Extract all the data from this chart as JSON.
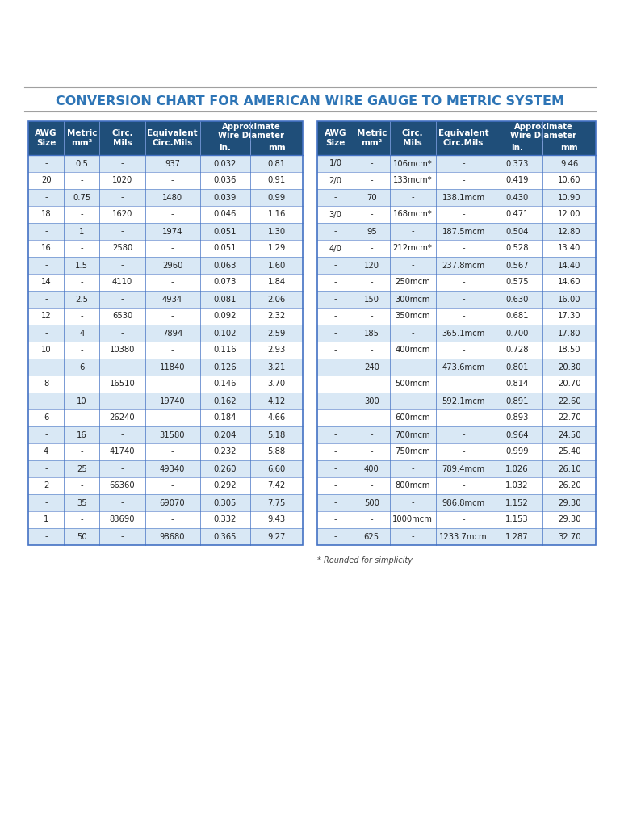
{
  "title": "CONVERSION CHART FOR AMERICAN WIRE GAUGE TO METRIC SYSTEM",
  "title_color": "#2E75B6",
  "header_bg": "#1F4E79",
  "header_text_color": "#FFFFFF",
  "odd_row_bg": "#D9E8F5",
  "even_row_bg": "#FFFFFF",
  "border_color": "#4472C4",
  "left_data": [
    [
      "-",
      "0.5",
      "-",
      "937",
      "0.032",
      "0.81"
    ],
    [
      "20",
      "-",
      "1020",
      "-",
      "0.036",
      "0.91"
    ],
    [
      "-",
      "0.75",
      "-",
      "1480",
      "0.039",
      "0.99"
    ],
    [
      "18",
      "-",
      "1620",
      "-",
      "0.046",
      "1.16"
    ],
    [
      "-",
      "1",
      "-",
      "1974",
      "0.051",
      "1.30"
    ],
    [
      "16",
      "-",
      "2580",
      "-",
      "0.051",
      "1.29"
    ],
    [
      "-",
      "1.5",
      "-",
      "2960",
      "0.063",
      "1.60"
    ],
    [
      "14",
      "-",
      "4110",
      "-",
      "0.073",
      "1.84"
    ],
    [
      "-",
      "2.5",
      "-",
      "4934",
      "0.081",
      "2.06"
    ],
    [
      "12",
      "-",
      "6530",
      "-",
      "0.092",
      "2.32"
    ],
    [
      "-",
      "4",
      "-",
      "7894",
      "0.102",
      "2.59"
    ],
    [
      "10",
      "-",
      "10380",
      "-",
      "0.116",
      "2.93"
    ],
    [
      "-",
      "6",
      "-",
      "11840",
      "0.126",
      "3.21"
    ],
    [
      "8",
      "-",
      "16510",
      "-",
      "0.146",
      "3.70"
    ],
    [
      "-",
      "10",
      "-",
      "19740",
      "0.162",
      "4.12"
    ],
    [
      "6",
      "-",
      "26240",
      "-",
      "0.184",
      "4.66"
    ],
    [
      "-",
      "16",
      "-",
      "31580",
      "0.204",
      "5.18"
    ],
    [
      "4",
      "-",
      "41740",
      "-",
      "0.232",
      "5.88"
    ],
    [
      "-",
      "25",
      "-",
      "49340",
      "0.260",
      "6.60"
    ],
    [
      "2",
      "-",
      "66360",
      "-",
      "0.292",
      "7.42"
    ],
    [
      "-",
      "35",
      "-",
      "69070",
      "0.305",
      "7.75"
    ],
    [
      "1",
      "-",
      "83690",
      "-",
      "0.332",
      "9.43"
    ],
    [
      "-",
      "50",
      "-",
      "98680",
      "0.365",
      "9.27"
    ]
  ],
  "right_data": [
    [
      "1/0",
      "-",
      "106mcm*",
      "-",
      "0.373",
      "9.46"
    ],
    [
      "2/0",
      "-",
      "133mcm*",
      "-",
      "0.419",
      "10.60"
    ],
    [
      "-",
      "70",
      "-",
      "138.1mcm",
      "0.430",
      "10.90"
    ],
    [
      "3/0",
      "-",
      "168mcm*",
      "-",
      "0.471",
      "12.00"
    ],
    [
      "-",
      "95",
      "-",
      "187.5mcm",
      "0.504",
      "12.80"
    ],
    [
      "4/0",
      "-",
      "212mcm*",
      "-",
      "0.528",
      "13.40"
    ],
    [
      "-",
      "120",
      "-",
      "237.8mcm",
      "0.567",
      "14.40"
    ],
    [
      "-",
      "-",
      "250mcm",
      "-",
      "0.575",
      "14.60"
    ],
    [
      "-",
      "150",
      "300mcm",
      "-",
      "0.630",
      "16.00"
    ],
    [
      "-",
      "-",
      "350mcm",
      "-",
      "0.681",
      "17.30"
    ],
    [
      "-",
      "185",
      "-",
      "365.1mcm",
      "0.700",
      "17.80"
    ],
    [
      "-",
      "-",
      "400mcm",
      "-",
      "0.728",
      "18.50"
    ],
    [
      "-",
      "240",
      "-",
      "473.6mcm",
      "0.801",
      "20.30"
    ],
    [
      "-",
      "-",
      "500mcm",
      "-",
      "0.814",
      "20.70"
    ],
    [
      "-",
      "300",
      "-",
      "592.1mcm",
      "0.891",
      "22.60"
    ],
    [
      "-",
      "-",
      "600mcm",
      "-",
      "0.893",
      "22.70"
    ],
    [
      "-",
      "-",
      "700mcm",
      "-",
      "0.964",
      "24.50"
    ],
    [
      "-",
      "-",
      "750mcm",
      "-",
      "0.999",
      "25.40"
    ],
    [
      "-",
      "400",
      "-",
      "789.4mcm",
      "1.026",
      "26.10"
    ],
    [
      "-",
      "-",
      "800mcm",
      "-",
      "1.032",
      "26.20"
    ],
    [
      "-",
      "500",
      "-",
      "986.8mcm",
      "1.152",
      "29.30"
    ],
    [
      "-",
      "-",
      "1000mcm",
      "-",
      "1.153",
      "29.30"
    ],
    [
      "-",
      "625",
      "-",
      "1233.7mcm",
      "1.287",
      "32.70"
    ]
  ],
  "footnote": "* Rounded for simplicity"
}
